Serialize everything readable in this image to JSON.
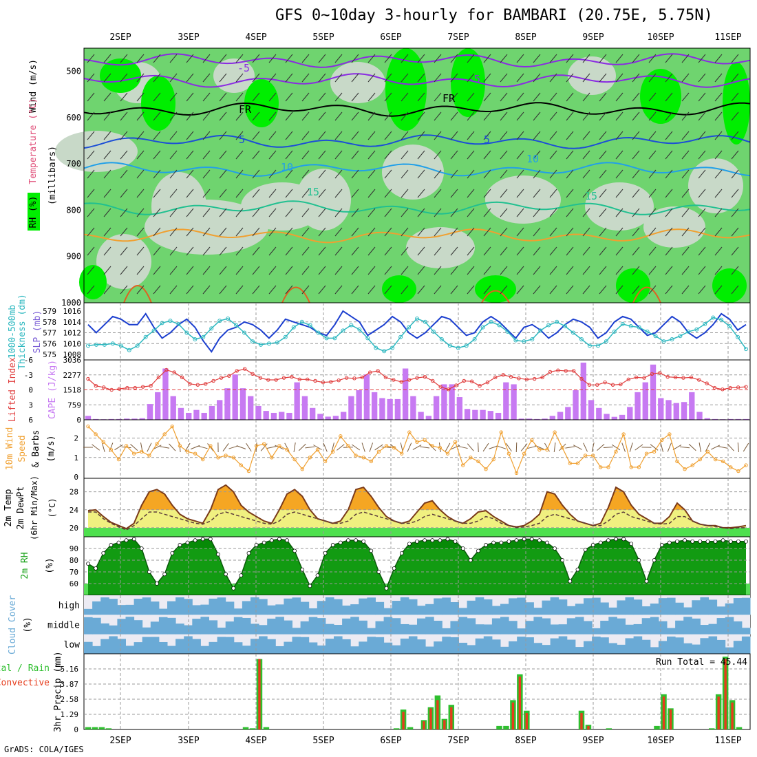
{
  "title": "GFS 0~10day 3-hourly for BAMBARI (20.75E, 5.75N)",
  "footer": "GrADS: COLA/IGES",
  "dates": [
    "2SEP",
    "3SEP",
    "4SEP",
    "5SEP",
    "6SEP",
    "7SEP",
    "8SEP",
    "9SEP",
    "10SEP",
    "11SEP"
  ],
  "colors": {
    "rh_light": "#c8d9c8",
    "rh_mid": "#6fd46f",
    "rh_bright": "#00ee00",
    "slp": "#1c3fcf",
    "thickness": "#2eb8c0",
    "lifted": "#e03c3c",
    "cape": "#c77af2",
    "wind10": "#f0a030",
    "temp_fill": "#f5a623",
    "dew_fill": "#f0f080",
    "rh2m": "#1aa31a",
    "cloud": "#6aaad6",
    "rain": "#2fbf2f",
    "convective": "#e63c1c"
  },
  "panels": {
    "upper": {
      "axis_title": "(millibars)",
      "left_labels": [
        "Wind (m/s)",
        "Temperature (°C)",
        "RH (%)"
      ],
      "yticks": [
        "500",
        "600",
        "700",
        "800",
        "900",
        "1000"
      ],
      "contour_labels": [
        "5",
        "-5",
        "FR",
        "FR",
        "5",
        "5",
        "10",
        "10",
        "15",
        "15"
      ]
    },
    "slp": {
      "left_labels": [
        "1000-500mb",
        "Thickness (dm)",
        "SLP (mb)"
      ],
      "thickness_ticks": [
        "579",
        "578",
        "577",
        "576",
        "575"
      ],
      "slp_ticks": [
        "1016",
        "1014",
        "1012",
        "1010",
        "1008"
      ]
    },
    "cape": {
      "left_labels": [
        "Lifted Index",
        "CAPE (J/kg)"
      ],
      "li_ticks": [
        "-6",
        "-3",
        "0",
        "3",
        "6"
      ],
      "cape_ticks": [
        "3036",
        "2277",
        "1518",
        "759",
        "0"
      ]
    },
    "wind10": {
      "left_labels": [
        "10m Wind",
        "Speed",
        "& Barbs",
        "(m/s)"
      ],
      "yticks": [
        "2",
        "1",
        "0"
      ]
    },
    "temp": {
      "left_labels": [
        "2m Temp",
        "2m DewPt",
        "(6hr Min/Max)",
        "(°C)"
      ],
      "yticks": [
        "28",
        "24",
        "20"
      ]
    },
    "rh2m": {
      "left_labels": [
        "2m RH",
        "(%)"
      ],
      "yticks": [
        "90",
        "80",
        "70",
        "60"
      ]
    },
    "cloud": {
      "left_labels": [
        "Cloud Cover",
        "(%)"
      ],
      "levels": [
        "high",
        "middle",
        "low"
      ]
    },
    "precip": {
      "left_labels": [
        "Total / Rain",
        "Convective",
        "3hr Precip (mm)"
      ],
      "yticks": [
        "5.16",
        "3.87",
        "2.58",
        "1.29",
        "0"
      ],
      "run_total": "Run Total = 45.44"
    }
  },
  "chart_data": [
    {
      "type": "line",
      "title": "1000-500mb Thickness (dm) / SLP (mb)",
      "series": [
        {
          "name": "SLP (mb)",
          "values": [
            1013.5,
            1012,
            1013.5,
            1015,
            1014.5,
            1013.5,
            1013.5,
            1015.5,
            1013,
            1011,
            1012,
            1013.5,
            1014.5,
            1013,
            1010.5,
            1008.5,
            1011,
            1012.5,
            1013,
            1014,
            1013.5,
            1012.5,
            1011,
            1012.5,
            1014.5,
            1014,
            1013.5,
            1013,
            1012,
            1011.5,
            1013.5,
            1016,
            1015,
            1014,
            1011.5,
            1012.5,
            1013.5,
            1015,
            1014,
            1012,
            1011,
            1012,
            1013.5,
            1015,
            1014.5,
            1013,
            1011.5,
            1012,
            1014,
            1015,
            1014,
            1012.5,
            1011,
            1013,
            1013.5,
            1012.5,
            1011,
            1012,
            1013.5,
            1014.5,
            1014,
            1013,
            1011,
            1012,
            1014,
            1015,
            1014.5,
            1013,
            1011.5,
            1012,
            1013.5,
            1015,
            1014,
            1012,
            1011,
            1012,
            1013.5,
            1015.5,
            1014.5,
            1012.5,
            1013.5
          ]
        },
        {
          "name": "1000-500mb Thickness (dm)",
          "values": [
            575.8,
            575.9,
            575.9,
            576,
            575.8,
            575.4,
            575.8,
            576.6,
            577.2,
            577.9,
            578.1,
            577.8,
            577,
            576.4,
            576.6,
            577.4,
            578.1,
            578.3,
            577.7,
            577,
            576.2,
            575.9,
            576,
            576.1,
            576.6,
            577.5,
            578,
            577.7,
            577,
            576.5,
            576.5,
            577.2,
            577.7,
            577.3,
            576.5,
            575.6,
            575.3,
            575.6,
            576.6,
            577.5,
            578.3,
            578,
            577.1,
            576.4,
            575.8,
            575.6,
            575.8,
            576.4,
            577.5,
            578,
            577.7,
            577.1,
            576.3,
            576.2,
            576.4,
            577.2,
            577.7,
            578,
            577.6,
            577,
            576.4,
            575.8,
            575.8,
            576.2,
            577.1,
            577.8,
            577.6,
            577.5,
            577.1,
            576.7,
            576.2,
            576.4,
            576.7,
            577.1,
            577.3,
            577.8,
            578.4,
            578.2,
            577.6,
            576.6,
            575.5
          ]
        }
      ]
    },
    {
      "type": "bar",
      "title": "Lifted Index / CAPE (J/kg)",
      "series": [
        {
          "name": "CAPE (J/kg)",
          "values": [
            200,
            40,
            30,
            40,
            40,
            60,
            60,
            80,
            800,
            1400,
            2600,
            1200,
            600,
            350,
            500,
            350,
            700,
            1000,
            1600,
            2300,
            1600,
            1200,
            700,
            450,
            350,
            400,
            350,
            1900,
            1200,
            600,
            300,
            160,
            200,
            400,
            1200,
            1500,
            2300,
            1400,
            1100,
            1050,
            1050,
            2600,
            1200,
            400,
            200,
            1200,
            1800,
            1800,
            1150,
            550,
            500,
            500,
            450,
            350,
            1900,
            1800,
            60,
            60,
            40,
            60,
            200,
            400,
            650,
            1500,
            2900,
            1000,
            600,
            300,
            150,
            250,
            650,
            1400,
            1900,
            2800,
            1100,
            1000,
            850,
            900,
            1400,
            400,
            80,
            40,
            30,
            40,
            40,
            40
          ]
        },
        {
          "name": "Lifted Index",
          "values": [
            -2.2,
            -0.8,
            -0.5,
            0,
            -0.2,
            -0.4,
            -0.4,
            -0.6,
            -0.8,
            -2.5,
            -4,
            -3.5,
            -2.5,
            -1.2,
            -1,
            -1.2,
            -1.8,
            -2.4,
            -2.8,
            -3.8,
            -4.2,
            -3.2,
            -2.4,
            -2,
            -2,
            -2.4,
            -2.6,
            -2.1,
            -2.1,
            -1.8,
            -1.5,
            -1.6,
            -1.9,
            -2.4,
            -2.3,
            -2.5,
            -3.5,
            -3.8,
            -2.5,
            -2,
            -1.6,
            -2,
            -2.4,
            -2.6,
            -1.8,
            -0.6,
            -0.1,
            -0.9,
            -1.8,
            -1.7,
            -0.8,
            -1.5,
            -2.5,
            -3,
            -2.6,
            -2.3,
            -2.1,
            -2.2,
            -2.5,
            -3.6,
            -3.9,
            -3.8,
            -3.8,
            -2.2,
            -1,
            -1,
            -1.5,
            -1,
            -1.1,
            -2.1,
            -2.5,
            -2.4,
            -3.2,
            -3.4,
            -2.6,
            -2.5,
            -2.4,
            -2.5,
            -2,
            -1.3,
            -0.4,
            -0.1,
            -0.4,
            -0.5,
            -0.6
          ]
        }
      ]
    },
    {
      "type": "line",
      "title": "10m Wind Speed & Barbs (m/s)",
      "series": [
        {
          "name": "10m Wind Speed",
          "values": [
            2.6,
            2.2,
            1.8,
            1.4,
            0.9,
            1.6,
            1.2,
            1.3,
            1.1,
            1.7,
            2.2,
            2.6,
            1.6,
            1.3,
            1.2,
            0.9,
            1.6,
            1,
            1.1,
            1,
            0.6,
            0.3,
            1.6,
            1.7,
            1,
            1.6,
            1.4,
            0.9,
            0.4,
            1,
            1.4,
            0.8,
            1.3,
            2.1,
            1.6,
            1.1,
            1,
            0.8,
            1.3,
            1.6,
            1.5,
            1.2,
            2.3,
            1.8,
            1.9,
            1.6,
            1.5,
            1.2,
            1.8,
            0.6,
            1,
            0.8,
            0.4,
            0.9,
            2.3,
            1.2,
            0.2,
            1.2,
            1.9,
            1.4,
            1.4,
            2.3,
            1.5,
            0.7,
            0.7,
            1.1,
            1.1,
            0.5,
            0.5,
            1.3,
            2.2,
            0.5,
            0.5,
            1.2,
            1.3,
            1.9,
            2.2,
            0.8,
            0.4,
            0.6,
            0.9,
            1.3,
            0.9,
            0.8,
            0.5,
            0.3,
            0.6
          ]
        }
      ]
    },
    {
      "type": "area",
      "title": "2m Temp / 2m DewPt (°C)",
      "series": [
        {
          "name": "2m Temp",
          "values": [
            23.8,
            24,
            22.5,
            21.2,
            20.5,
            19.8,
            21,
            25,
            28,
            28.5,
            27.5,
            25,
            23,
            22,
            21.5,
            21,
            24,
            28.5,
            29.5,
            28,
            25,
            23.5,
            22.5,
            21.5,
            21,
            24,
            27.5,
            28.5,
            27,
            24,
            22,
            21.5,
            21,
            21.5,
            24,
            28.5,
            29,
            27,
            24.5,
            22.5,
            21.5,
            21,
            21.5,
            23.5,
            25.5,
            26,
            24,
            22.5,
            21.5,
            21,
            22,
            23.5,
            23.8,
            22.5,
            21.5,
            20.5,
            20.2,
            20.5,
            21.5,
            23,
            28,
            27.5,
            25,
            23,
            21.5,
            21,
            20.5,
            21,
            24.5,
            29,
            28,
            25,
            23,
            22,
            21,
            21,
            22.5,
            25.5,
            24,
            21.5,
            20.8,
            20.5,
            20.5,
            20,
            20,
            20.2,
            20.5
          ]
        },
        {
          "name": "2m DewPt",
          "values": [
            23.5,
            23.5,
            22,
            21,
            20.2,
            19.5,
            20.5,
            22,
            23.5,
            23.5,
            23,
            22.5,
            22,
            21.5,
            21,
            20.8,
            21.5,
            23,
            23.5,
            23,
            22.5,
            22,
            21.5,
            21,
            20.8,
            21.5,
            23,
            23.5,
            23,
            22.5,
            22,
            21.5,
            21,
            21,
            21.5,
            23,
            23.5,
            23,
            22.5,
            22,
            21.5,
            21,
            21,
            21.5,
            22.5,
            23,
            22.5,
            22,
            21.5,
            21,
            21,
            21.5,
            22.5,
            22,
            21,
            20.5,
            20,
            20.2,
            20.5,
            21,
            22.5,
            23,
            22.5,
            22,
            21.5,
            21,
            20.5,
            20.5,
            21.5,
            23,
            23.5,
            22.5,
            22,
            21.5,
            21,
            20.8,
            21,
            22.5,
            22.5,
            21.5,
            20.8,
            20.5,
            20.3,
            20,
            19.8,
            20,
            20
          ]
        }
      ]
    },
    {
      "type": "area",
      "title": "2m RH (%)",
      "series": [
        {
          "name": "2m RH",
          "values": [
            77,
            73,
            86,
            93,
            95,
            97,
            98,
            90,
            70,
            60,
            68,
            86,
            93,
            95,
            97,
            98,
            98,
            85,
            68,
            56,
            67,
            86,
            93,
            95,
            97,
            98,
            97,
            88,
            72,
            58,
            67,
            86,
            93,
            95,
            97,
            97,
            96,
            88,
            70,
            56,
            73,
            86,
            94,
            96,
            97,
            97,
            97,
            98,
            96,
            90,
            80,
            88,
            93,
            95,
            95,
            96,
            97,
            98,
            98,
            97,
            95,
            90,
            80,
            62,
            72,
            89,
            93,
            95,
            97,
            98,
            98,
            94,
            80,
            62,
            80,
            93,
            95,
            96,
            97,
            96,
            96,
            96,
            96,
            97,
            96,
            96,
            96
          ]
        }
      ]
    },
    {
      "type": "bar",
      "title": "3hr Precip (mm)",
      "series": [
        {
          "name": "Total / Rain",
          "values": [
            0.2,
            0.2,
            0.2,
            0.1,
            0,
            0,
            0,
            0,
            0,
            0,
            0,
            0,
            0,
            0,
            0,
            0,
            0,
            0,
            0,
            0,
            0,
            0,
            0,
            0.2,
            0.1,
            6,
            0.2,
            0,
            0,
            0,
            0,
            0,
            0,
            0,
            0,
            0,
            0,
            0,
            0,
            0,
            0,
            0,
            0,
            0,
            0,
            0.1,
            1.7,
            0.2,
            0,
            0.8,
            1.9,
            2.9,
            0.9,
            2.1,
            0,
            0,
            0,
            0,
            0,
            0,
            0.3,
            0.3,
            2.5,
            4.7,
            1.6,
            0,
            0,
            0,
            0,
            0,
            0,
            0,
            1.6,
            0.4,
            0,
            0,
            0.1,
            0,
            0,
            0,
            0,
            0,
            0,
            0.3,
            3,
            1.8,
            0,
            0,
            0,
            0,
            0,
            0.1,
            3,
            6.2,
            2.5,
            0.2,
            0
          ]
        },
        {
          "name": "Convective",
          "values": [
            0,
            0,
            0,
            0,
            0,
            0,
            0,
            0,
            0,
            0,
            0,
            0,
            0,
            0,
            0,
            0,
            0,
            0,
            0,
            0,
            0,
            0,
            0,
            0,
            0,
            6,
            0,
            0,
            0,
            0,
            0,
            0,
            0,
            0,
            0,
            0,
            0,
            0,
            0,
            0,
            0,
            0,
            0,
            0,
            0,
            0,
            1.5,
            0,
            0,
            0.7,
            1.8,
            2.5,
            0.8,
            1.9,
            0,
            0,
            0,
            0,
            0,
            0,
            0,
            0,
            2.3,
            4.5,
            1.4,
            0,
            0,
            0,
            0,
            0,
            0,
            0,
            1.4,
            0.3,
            0,
            0,
            0,
            0,
            0,
            0,
            0,
            0,
            0,
            0,
            2.8,
            1.7,
            0,
            0,
            0,
            0,
            0,
            0,
            2.8,
            6,
            2.3,
            0,
            0
          ]
        }
      ]
    }
  ]
}
